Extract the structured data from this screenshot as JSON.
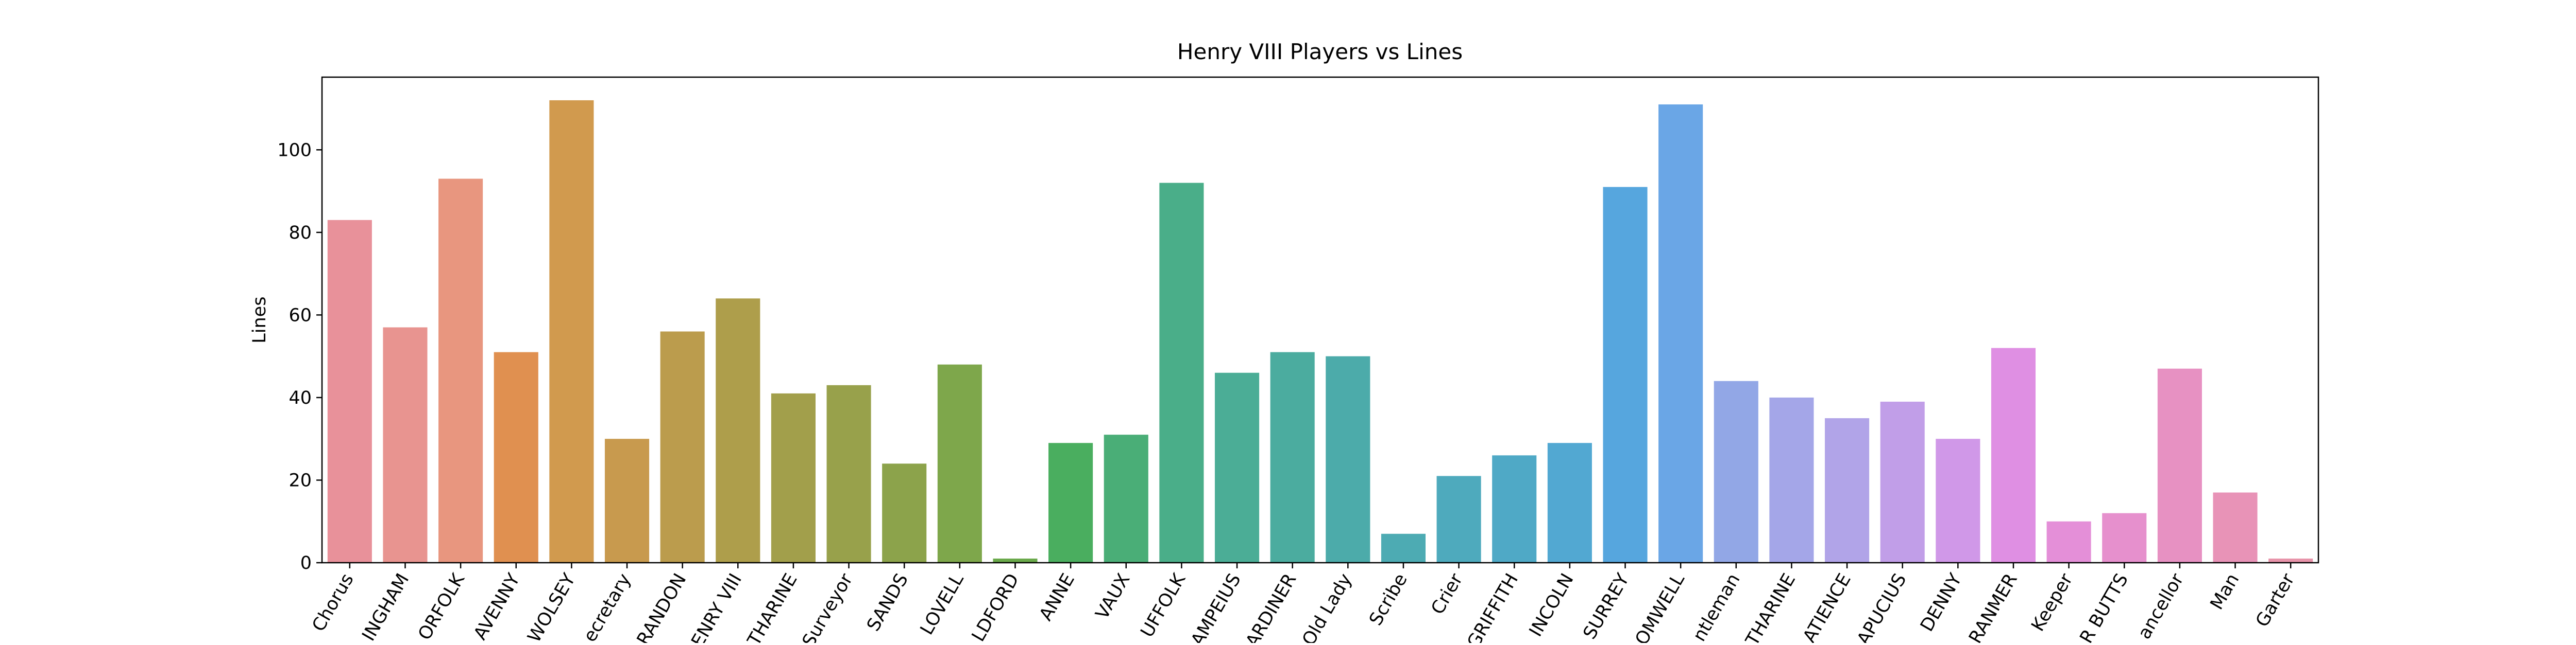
{
  "chart_data": {
    "type": "bar",
    "title": "Henry VIII Players vs Lines",
    "y_label": "Lines",
    "categories": [
      "Chorus",
      "INGHAM",
      "ORFOLK",
      "AVENNY",
      "WOLSEY",
      "ecretary",
      "RANDON",
      "ENRY VIII",
      "THARINE",
      "Surveyor",
      "SANDS",
      "LOVELL",
      "LDFORD",
      "ANNE",
      "VAUX",
      "UFFOLK",
      "AMPEIUS",
      "ARDINER",
      "Old Lady",
      "Scribe",
      "Crier",
      "GRIFFITH",
      "INCOLN",
      "SURREY",
      "OMWELL",
      "ntleman",
      "THARINE",
      "ATIENCE",
      "APUCIUS",
      "DENNY",
      "RANMER",
      "Keeper",
      "R BUTTS",
      "ancellor",
      "Man",
      "Garter"
    ],
    "values": [
      83,
      57,
      93,
      51,
      112,
      30,
      56,
      64,
      41,
      43,
      24,
      48,
      1,
      29,
      31,
      92,
      46,
      51,
      50,
      7,
      21,
      26,
      29,
      91,
      111,
      44,
      40,
      35,
      39,
      30,
      52,
      10,
      12,
      47,
      17,
      1
    ],
    "colors": [
      "#e8919a",
      "#e89490",
      "#e8967f",
      "#e09050",
      "#d19a4e",
      "#c89a4e",
      "#bb9c4d",
      "#ae9e4b",
      "#a29f4b",
      "#98a14b",
      "#8ca34b",
      "#7ea74b",
      "#6aa94b",
      "#4aae5f",
      "#4aae77",
      "#4aae89",
      "#4bad96",
      "#4bac9f",
      "#4cabaa",
      "#4dabb3",
      "#4eaabd",
      "#4fa9c6",
      "#52a8d2",
      "#56a6de",
      "#6aa6e6",
      "#92a7e6",
      "#a4a6e8",
      "#b1a4e8",
      "#c19ee8",
      "#d098e8",
      "#df8fe3",
      "#e48fd8",
      "#e690cd",
      "#e791c2",
      "#e893b7",
      "#e894aa"
    ],
    "ylim": [
      0,
      117.6
    ],
    "yticks": [
      0,
      20,
      40,
      60,
      80,
      100
    ]
  }
}
